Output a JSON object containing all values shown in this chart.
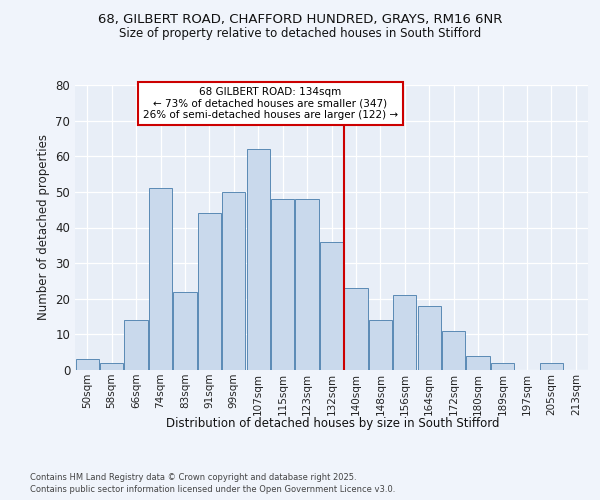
{
  "title_line1": "68, GILBERT ROAD, CHAFFORD HUNDRED, GRAYS, RM16 6NR",
  "title_line2": "Size of property relative to detached houses in South Stifford",
  "xlabel": "Distribution of detached houses by size in South Stifford",
  "ylabel": "Number of detached properties",
  "bar_labels": [
    "50sqm",
    "58sqm",
    "66sqm",
    "74sqm",
    "83sqm",
    "91sqm",
    "99sqm",
    "107sqm",
    "115sqm",
    "123sqm",
    "132sqm",
    "140sqm",
    "148sqm",
    "156sqm",
    "164sqm",
    "172sqm",
    "180sqm",
    "189sqm",
    "197sqm",
    "205sqm",
    "213sqm"
  ],
  "bar_values": [
    3,
    2,
    14,
    51,
    22,
    44,
    50,
    62,
    48,
    48,
    36,
    23,
    14,
    21,
    18,
    11,
    4,
    2,
    0,
    2,
    0
  ],
  "bar_color": "#c9d9ec",
  "bar_edge_color": "#5a8ab5",
  "reference_line_x": 10.5,
  "annotation_title": "68 GILBERT ROAD: 134sqm",
  "annotation_line1": "← 73% of detached houses are smaller (347)",
  "annotation_line2": "26% of semi-detached houses are larger (122) →",
  "annotation_box_color": "#ffffff",
  "annotation_box_edge": "#cc0000",
  "reference_line_color": "#cc0000",
  "ylim": [
    0,
    80
  ],
  "yticks": [
    0,
    10,
    20,
    30,
    40,
    50,
    60,
    70,
    80
  ],
  "fig_background": "#f0f4fb",
  "axes_background": "#e8eef7",
  "footer_line1": "Contains HM Land Registry data © Crown copyright and database right 2025.",
  "footer_line2": "Contains public sector information licensed under the Open Government Licence v3.0."
}
